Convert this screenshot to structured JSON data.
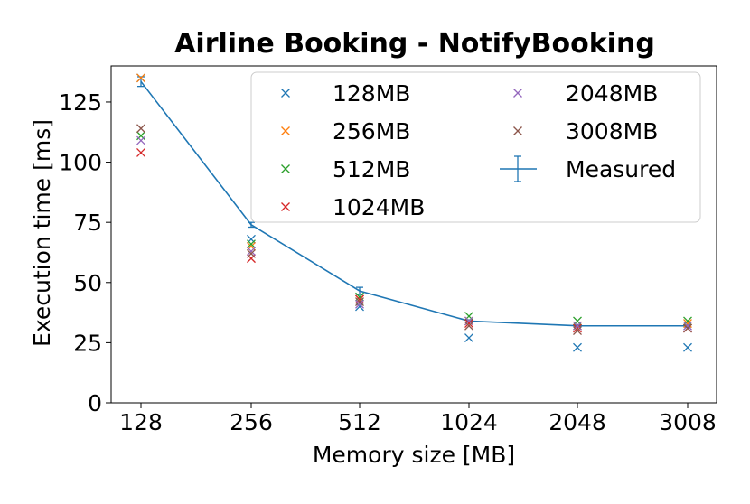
{
  "chart_data": {
    "type": "scatter",
    "title": "Airline Booking - NotifyBooking",
    "xlabel": "Memory size [MB]",
    "ylabel": "Execution time [ms]",
    "categories": [
      "128",
      "256",
      "512",
      "1024",
      "2048",
      "3008"
    ],
    "ylim": [
      0,
      140
    ],
    "yticks": [
      "0",
      "25",
      "50",
      "75",
      "100",
      "125"
    ],
    "grid": false,
    "legend_position": "top-right",
    "series": [
      {
        "name": "128MB",
        "color": "#1f77b4",
        "marker": "x",
        "values": [
          135,
          68,
          40,
          27,
          23,
          23
        ]
      },
      {
        "name": "256MB",
        "color": "#ff7f0e",
        "marker": "x",
        "values": [
          135,
          65,
          43,
          34,
          32,
          33
        ]
      },
      {
        "name": "512MB",
        "color": "#2ca02c",
        "marker": "x",
        "values": [
          111,
          66,
          44,
          36,
          34,
          34
        ]
      },
      {
        "name": "1024MB",
        "color": "#d62728",
        "marker": "x",
        "values": [
          104,
          60,
          43,
          33,
          31,
          31
        ]
      },
      {
        "name": "2048MB",
        "color": "#9467bd",
        "marker": "x",
        "values": [
          109,
          63,
          41,
          34,
          32,
          32
        ]
      },
      {
        "name": "3008MB",
        "color": "#8c564b",
        "marker": "x",
        "values": [
          114,
          62,
          42,
          32,
          30,
          31
        ]
      }
    ],
    "measured": {
      "name": "Measured",
      "color": "#1f77b4",
      "values": [
        133.5,
        74,
        46.5,
        34,
        32,
        32
      ],
      "error": [
        2,
        1,
        1.5,
        0.5,
        0.5,
        0.5
      ]
    }
  }
}
